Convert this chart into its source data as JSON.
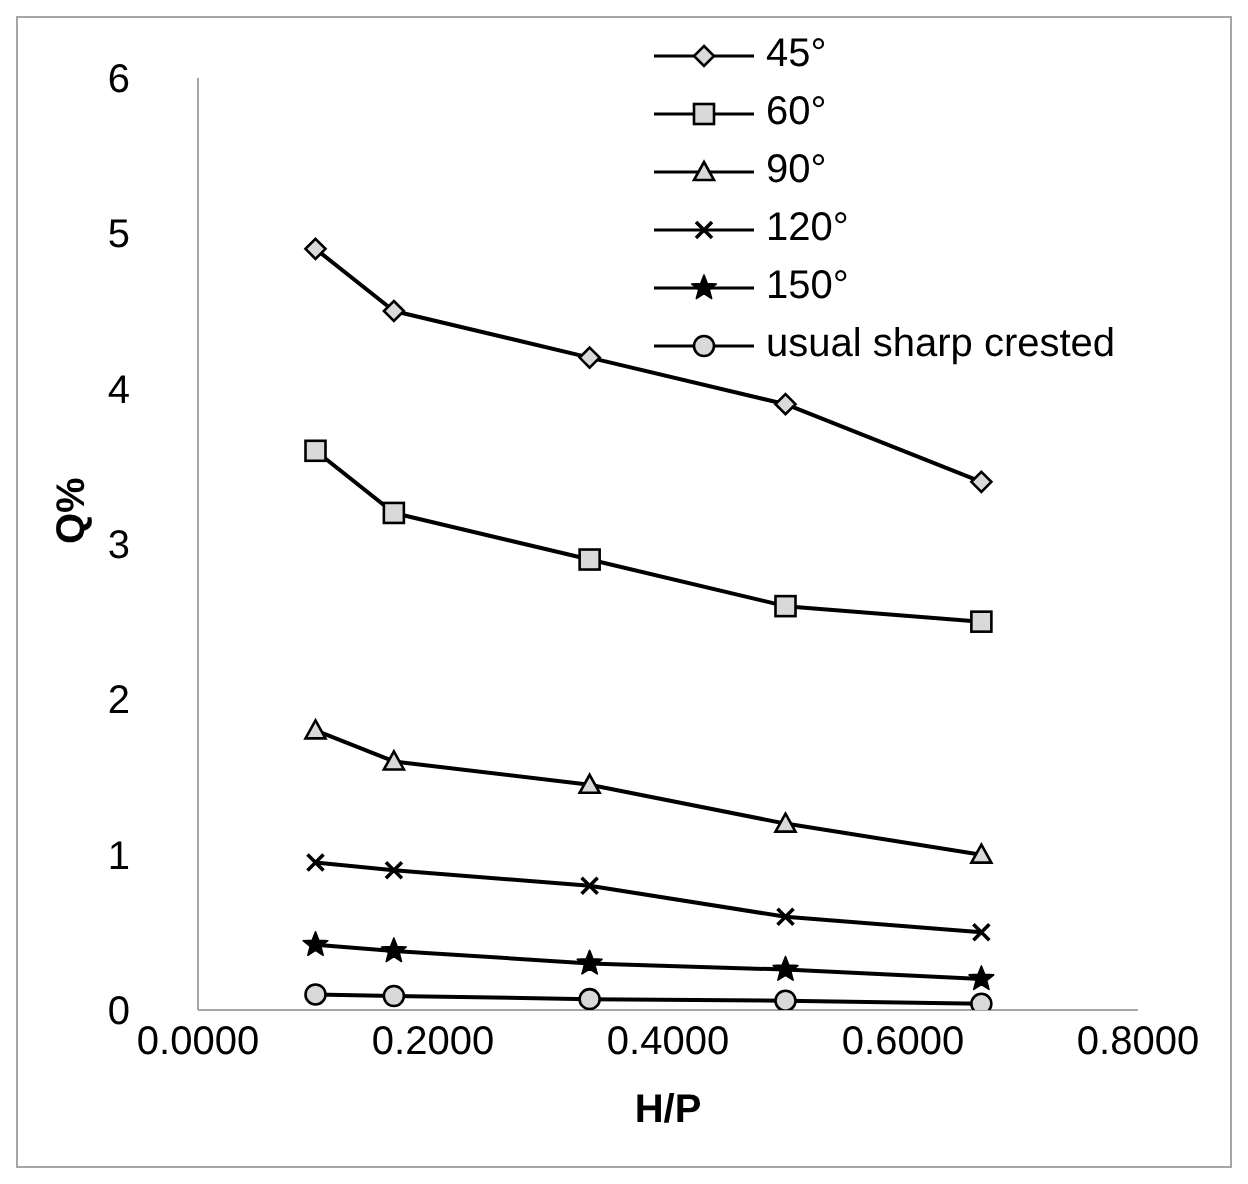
{
  "chart_data": {
    "type": "line",
    "xlabel": "H/P",
    "ylabel": "Q%",
    "x": [
      0.1,
      0.1667,
      0.3333,
      0.5,
      0.6667
    ],
    "xlim": [
      0,
      0.8
    ],
    "xticks": [
      {
        "value": 0,
        "label": "0.0000"
      },
      {
        "value": 0.2,
        "label": "0.2000"
      },
      {
        "value": 0.4,
        "label": "0.4000"
      },
      {
        "value": 0.6,
        "label": "0.6000"
      },
      {
        "value": 0.8,
        "label": "0.8000"
      }
    ],
    "ylim": [
      0,
      6
    ],
    "yticks": [
      0,
      1,
      2,
      3,
      4,
      5,
      6
    ],
    "grid": false,
    "legend": "top right",
    "line_style": "solid",
    "series": [
      {
        "name": "45°",
        "color": "#000000",
        "marker": "diamond",
        "values": [
          4.9,
          4.5,
          4.2,
          3.9,
          3.4
        ]
      },
      {
        "name": "60°",
        "color": "#000000",
        "marker": "square",
        "values": [
          3.6,
          3.2,
          2.9,
          2.6,
          2.5
        ]
      },
      {
        "name": "90°",
        "color": "#000000",
        "marker": "triangle",
        "values": [
          1.8,
          1.6,
          1.45,
          1.2,
          1.0
        ]
      },
      {
        "name": "120°",
        "color": "#000000",
        "marker": "cross",
        "values": [
          0.95,
          0.9,
          0.8,
          0.6,
          0.5
        ]
      },
      {
        "name": "150°",
        "color": "#000000",
        "marker": "star",
        "values": [
          0.42,
          0.38,
          0.3,
          0.26,
          0.2
        ]
      },
      {
        "name": "usual sharp crested",
        "color": "#000000",
        "marker": "circle",
        "values": [
          0.1,
          0.09,
          0.07,
          0.06,
          0.04
        ]
      }
    ]
  }
}
